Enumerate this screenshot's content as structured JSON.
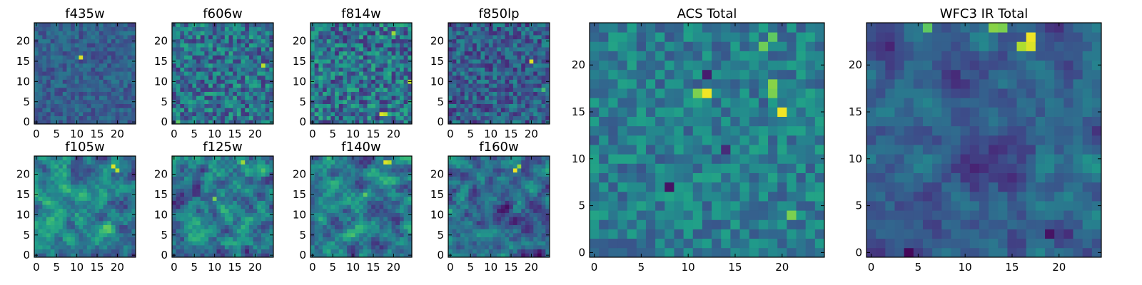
{
  "chart_data": [
    {
      "type": "heatmap",
      "title": "f435w",
      "xticks": [
        "0",
        "5",
        "10",
        "15",
        "20"
      ],
      "yticks": [
        "0",
        "5",
        "10",
        "15",
        "20"
      ],
      "grid_size": 25,
      "value_range": [
        0,
        1
      ],
      "pattern": "noise",
      "mean": 0.3,
      "spread": 0.12,
      "seed": 11,
      "peaks": [
        {
          "x": 11,
          "y": 16,
          "v": 0.95
        }
      ]
    },
    {
      "type": "heatmap",
      "title": "f606w",
      "xticks": [
        "0",
        "5",
        "10",
        "15",
        "20"
      ],
      "yticks": [
        "0",
        "5",
        "10",
        "15",
        "20"
      ],
      "grid_size": 25,
      "value_range": [
        0,
        1
      ],
      "pattern": "noise",
      "mean": 0.38,
      "spread": 0.24,
      "seed": 23,
      "peaks": [
        {
          "x": 22,
          "y": 14,
          "v": 0.9
        },
        {
          "x": 1,
          "y": 0,
          "v": 0.75
        }
      ]
    },
    {
      "type": "heatmap",
      "title": "f814w",
      "xticks": [
        "0",
        "5",
        "10",
        "15",
        "20"
      ],
      "yticks": [
        "0",
        "5",
        "10",
        "15",
        "20"
      ],
      "grid_size": 25,
      "value_range": [
        0,
        1
      ],
      "pattern": "noise",
      "mean": 0.38,
      "spread": 0.26,
      "seed": 37,
      "peaks": [
        {
          "x": 17,
          "y": 2,
          "v": 0.95
        },
        {
          "x": 18,
          "y": 2,
          "v": 0.9
        },
        {
          "x": 20,
          "y": 22,
          "v": 0.85
        },
        {
          "x": 24,
          "y": 10,
          "v": 0.9
        }
      ]
    },
    {
      "type": "heatmap",
      "title": "f850lp",
      "xticks": [
        "0",
        "5",
        "10",
        "15",
        "20"
      ],
      "yticks": [
        "0",
        "5",
        "10",
        "15",
        "20"
      ],
      "grid_size": 25,
      "value_range": [
        0,
        1
      ],
      "pattern": "noise",
      "mean": 0.3,
      "spread": 0.2,
      "seed": 41,
      "peaks": [
        {
          "x": 20,
          "y": 15,
          "v": 0.95
        },
        {
          "x": 23,
          "y": 8,
          "v": 0.7
        }
      ]
    },
    {
      "type": "heatmap",
      "title": "f105w",
      "xticks": [
        "0",
        "5",
        "10",
        "15",
        "20"
      ],
      "yticks": [
        "0",
        "5",
        "10",
        "15",
        "20"
      ],
      "grid_size": 25,
      "value_range": [
        0,
        1
      ],
      "pattern": "smooth",
      "mean": 0.45,
      "spread": 0.2,
      "seed": 53,
      "peaks": [
        {
          "x": 19,
          "y": 22,
          "v": 0.95
        },
        {
          "x": 20,
          "y": 21,
          "v": 0.9
        }
      ]
    },
    {
      "type": "heatmap",
      "title": "f125w",
      "xticks": [
        "0",
        "5",
        "10",
        "15",
        "20"
      ],
      "yticks": [
        "0",
        "5",
        "10",
        "15",
        "20"
      ],
      "grid_size": 25,
      "value_range": [
        0,
        1
      ],
      "pattern": "smooth",
      "mean": 0.42,
      "spread": 0.22,
      "seed": 67,
      "peaks": [
        {
          "x": 17,
          "y": 23,
          "v": 0.85
        },
        {
          "x": 10,
          "y": 14,
          "v": 0.8
        }
      ]
    },
    {
      "type": "heatmap",
      "title": "f140w",
      "xticks": [
        "0",
        "5",
        "10",
        "15",
        "20"
      ],
      "yticks": [
        "0",
        "5",
        "10",
        "15",
        "20"
      ],
      "grid_size": 25,
      "value_range": [
        0,
        1
      ],
      "pattern": "smooth",
      "mean": 0.4,
      "spread": 0.22,
      "seed": 71,
      "peaks": [
        {
          "x": 18,
          "y": 23,
          "v": 0.95
        },
        {
          "x": 19,
          "y": 23,
          "v": 0.9
        },
        {
          "x": 13,
          "y": 15,
          "v": 0.75
        }
      ]
    },
    {
      "type": "heatmap",
      "title": "f160w",
      "xticks": [
        "0",
        "5",
        "10",
        "15",
        "20"
      ],
      "yticks": [
        "0",
        "5",
        "10",
        "15",
        "20"
      ],
      "grid_size": 25,
      "value_range": [
        0,
        1
      ],
      "pattern": "smooth",
      "mean": 0.35,
      "spread": 0.2,
      "seed": 83,
      "peaks": [
        {
          "x": 16,
          "y": 21,
          "v": 0.98
        },
        {
          "x": 17,
          "y": 22,
          "v": 0.85
        }
      ]
    },
    {
      "type": "heatmap",
      "title": "ACS Total",
      "xticks": [
        "0",
        "5",
        "10",
        "15",
        "20"
      ],
      "yticks": [
        "0",
        "5",
        "10",
        "15",
        "20"
      ],
      "grid_size": 25,
      "value_range": [
        0,
        1
      ],
      "pattern": "noise",
      "mean": 0.42,
      "spread": 0.16,
      "seed": 97,
      "peaks": [
        {
          "x": 12,
          "y": 17,
          "v": 0.98
        },
        {
          "x": 11,
          "y": 17,
          "v": 0.8
        },
        {
          "x": 20,
          "y": 15,
          "v": 0.98
        },
        {
          "x": 19,
          "y": 17,
          "v": 0.8
        },
        {
          "x": 19,
          "y": 18,
          "v": 0.82
        },
        {
          "x": 18,
          "y": 22,
          "v": 0.78
        },
        {
          "x": 19,
          "y": 23,
          "v": 0.75
        },
        {
          "x": 21,
          "y": 4,
          "v": 0.8
        },
        {
          "x": 8,
          "y": 7,
          "v": 0.05
        },
        {
          "x": 12,
          "y": 19,
          "v": 0.08
        },
        {
          "x": 14,
          "y": 11,
          "v": 0.12
        }
      ]
    },
    {
      "type": "heatmap",
      "title": "WFC3 IR Total",
      "xticks": [
        "0",
        "5",
        "10",
        "15",
        "20"
      ],
      "yticks": [
        "0",
        "5",
        "10",
        "15",
        "20"
      ],
      "grid_size": 25,
      "value_range": [
        0,
        1
      ],
      "pattern": "smooth",
      "mean": 0.3,
      "spread": 0.14,
      "seed": 109,
      "peaks": [
        {
          "x": 17,
          "y": 23,
          "v": 0.98
        },
        {
          "x": 17,
          "y": 22,
          "v": 0.95
        },
        {
          "x": 16,
          "y": 22,
          "v": 0.88
        },
        {
          "x": 13,
          "y": 24,
          "v": 0.82
        },
        {
          "x": 14,
          "y": 24,
          "v": 0.8
        },
        {
          "x": 6,
          "y": 24,
          "v": 0.75
        },
        {
          "x": 4,
          "y": 0,
          "v": 0.02
        },
        {
          "x": 19,
          "y": 2,
          "v": 0.05
        },
        {
          "x": 2,
          "y": 22,
          "v": 0.1
        }
      ]
    }
  ]
}
